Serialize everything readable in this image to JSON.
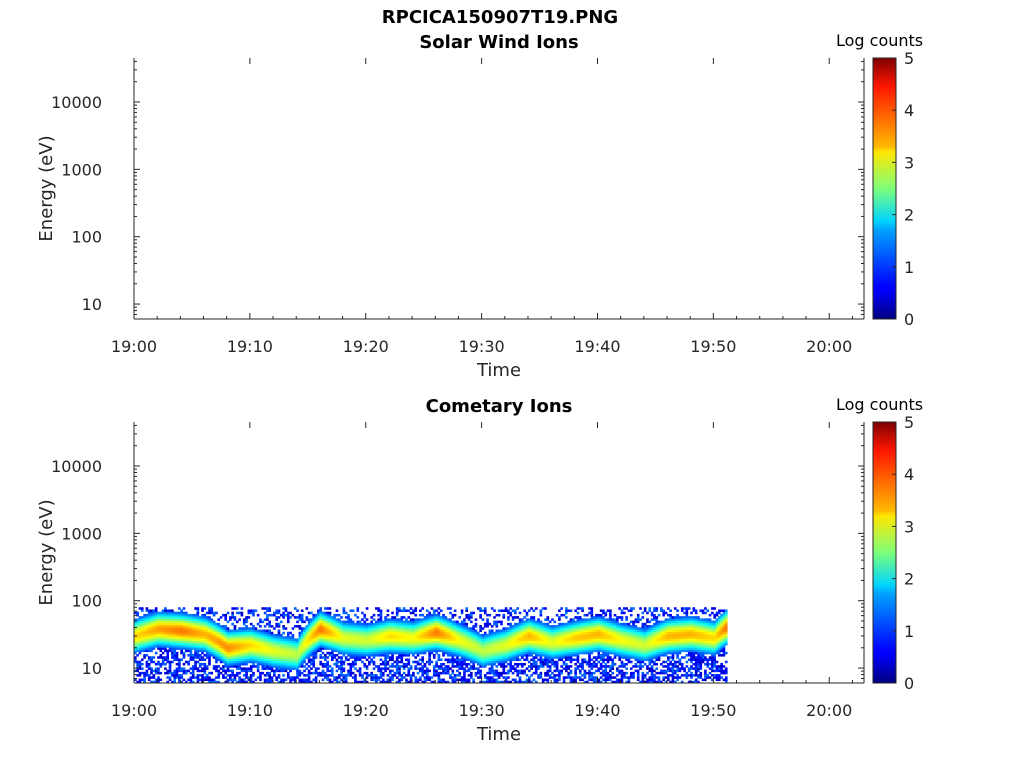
{
  "figure": {
    "suptitle": "RPCICA150907T19.PNG"
  },
  "chart_data": [
    {
      "type": "heatmap",
      "title": "Solar Wind Ions",
      "xlabel": "Time",
      "ylabel": "Energy (eV)",
      "x_ticks": [
        "19:00",
        "19:10",
        "19:20",
        "19:30",
        "19:40",
        "19:50",
        "20:00"
      ],
      "xlim": [
        "19:00",
        "20:03"
      ],
      "y_scale": "log",
      "y_ticks": [
        10,
        100,
        1000,
        10000
      ],
      "y_tick_labels": [
        "10",
        "100",
        "1000",
        "10000"
      ],
      "ylim": [
        6,
        45000
      ],
      "colorbar": {
        "label": "Log counts",
        "range": [
          0,
          5
        ],
        "ticks": [
          "0",
          "1",
          "2",
          "3",
          "4",
          "5"
        ],
        "colormap": "jet"
      },
      "data_present": false
    },
    {
      "type": "heatmap",
      "title": "Cometary Ions",
      "xlabel": "Time",
      "ylabel": "Energy (eV)",
      "x_ticks": [
        "19:00",
        "19:10",
        "19:20",
        "19:30",
        "19:40",
        "19:50",
        "20:00"
      ],
      "xlim": [
        "19:00",
        "20:03"
      ],
      "y_scale": "log",
      "y_ticks": [
        10,
        100,
        1000,
        10000
      ],
      "y_tick_labels": [
        "10",
        "100",
        "1000",
        "10000"
      ],
      "ylim": [
        6,
        45000
      ],
      "colorbar": {
        "label": "Log counts",
        "range": [
          0,
          5
        ],
        "ticks": [
          "0",
          "1",
          "2",
          "3",
          "4",
          "5"
        ],
        "colormap": "jet"
      },
      "data_present": true,
      "data_time_range": [
        "19:00",
        "19:51"
      ],
      "data_energy_range": [
        6,
        80
      ],
      "peak_energy_eV": {
        "times": [
          "19:00",
          "19:02",
          "19:04",
          "19:06",
          "19:08",
          "19:10",
          "19:12",
          "19:14",
          "19:16",
          "19:18",
          "19:20",
          "19:22",
          "19:24",
          "19:26",
          "19:28",
          "19:30",
          "19:32",
          "19:34",
          "19:36",
          "19:38",
          "19:40",
          "19:42",
          "19:44",
          "19:46",
          "19:48",
          "19:50",
          "19:51"
        ],
        "values": [
          30,
          38,
          36,
          32,
          20,
          22,
          18,
          16,
          38,
          28,
          26,
          30,
          28,
          34,
          26,
          18,
          22,
          30,
          24,
          28,
          32,
          26,
          22,
          30,
          32,
          28,
          40
        ]
      },
      "peak_log_counts": {
        "times": [
          "19:00",
          "19:02",
          "19:04",
          "19:06",
          "19:08",
          "19:10",
          "19:12",
          "19:14",
          "19:16",
          "19:18",
          "19:20",
          "19:22",
          "19:24",
          "19:26",
          "19:28",
          "19:30",
          "19:32",
          "19:34",
          "19:36",
          "19:38",
          "19:40",
          "19:42",
          "19:44",
          "19:46",
          "19:48",
          "19:50",
          "19:51"
        ],
        "values": [
          3.3,
          3.6,
          3.8,
          3.5,
          3.7,
          3.3,
          3.0,
          2.8,
          3.8,
          3.0,
          2.9,
          3.3,
          3.1,
          3.8,
          3.1,
          2.8,
          3.0,
          3.5,
          3.0,
          3.4,
          3.5,
          3.1,
          2.9,
          3.5,
          3.5,
          3.3,
          3.8
        ]
      }
    }
  ]
}
